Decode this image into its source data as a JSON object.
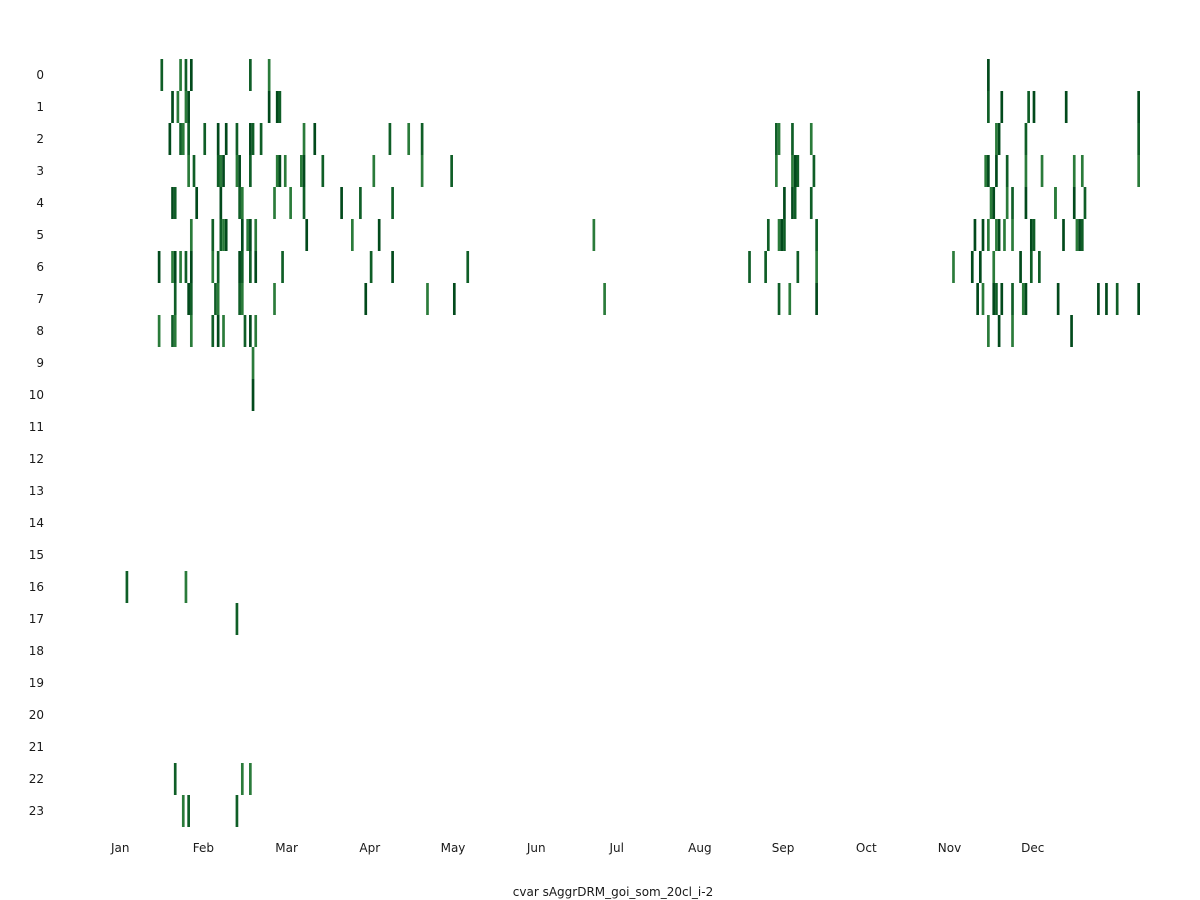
{
  "chart_data": {
    "type": "heatmap",
    "title": "",
    "xlabel": "cvar sAggrDRM_goi_som_20cl_i-2",
    "ylabel": "",
    "x_axis": {
      "type": "day-of-year",
      "range": [
        1,
        365
      ],
      "tick_labels": [
        "Jan",
        "Feb",
        "Mar",
        "Apr",
        "May",
        "Jun",
        "Jul",
        "Aug",
        "Sep",
        "Oct",
        "Nov",
        "Dec"
      ]
    },
    "y_axis": {
      "type": "hour-of-day",
      "range": [
        0,
        23
      ],
      "tick_labels": [
        "0",
        "1",
        "2",
        "3",
        "4",
        "5",
        "6",
        "7",
        "8",
        "9",
        "10",
        "11",
        "12",
        "13",
        "14",
        "15",
        "16",
        "17",
        "18",
        "19",
        "20",
        "21",
        "22",
        "23"
      ]
    },
    "grid": false,
    "legend": "none",
    "colors": {
      "dark": "#024a1c",
      "mid": "#0f5e27",
      "light": "#2a7b3a"
    },
    "cells": [
      {
        "hour": 0,
        "days": [
          28,
          35,
          37,
          39,
          61,
          68,
          336
        ]
      },
      {
        "hour": 1,
        "days": [
          32,
          34,
          37,
          38,
          68,
          71,
          72,
          336,
          341,
          351,
          353,
          365,
          392
        ]
      },
      {
        "hour": 2,
        "days": [
          31,
          35,
          36,
          38,
          44,
          49,
          52,
          56,
          61,
          62,
          65,
          81,
          85,
          113,
          120,
          125,
          257,
          258,
          263,
          270,
          339,
          340,
          350,
          392
        ]
      },
      {
        "hour": 3,
        "days": [
          38,
          40,
          49,
          50,
          51,
          56,
          57,
          61,
          71,
          72,
          74,
          80,
          81,
          88,
          107,
          125,
          136,
          257,
          263,
          264,
          265,
          271,
          335,
          336,
          339,
          343,
          350,
          356,
          368,
          371,
          392
        ]
      },
      {
        "hour": 4,
        "days": [
          32,
          33,
          41,
          50,
          57,
          58,
          70,
          76,
          81,
          95,
          102,
          114,
          260,
          263,
          264,
          270,
          337,
          338,
          343,
          345,
          350,
          361,
          361,
          368,
          372
        ]
      },
      {
        "hour": 5,
        "days": [
          39,
          47,
          50,
          51,
          52,
          58,
          60,
          61,
          63,
          82,
          99,
          109,
          189,
          254,
          258,
          259,
          260,
          272,
          331,
          334,
          336,
          339,
          340,
          342,
          345,
          352,
          353,
          364,
          369,
          370,
          371
        ]
      },
      {
        "hour": 6,
        "days": [
          27,
          32,
          33,
          35,
          37,
          39,
          47,
          49,
          57,
          58,
          61,
          63,
          73,
          106,
          114,
          142,
          247,
          253,
          265,
          272,
          323,
          330,
          333,
          338,
          348,
          352,
          355
        ]
      },
      {
        "hour": 7,
        "days": [
          33,
          38,
          39,
          48,
          49,
          57,
          58,
          70,
          104,
          127,
          137,
          193,
          258,
          262,
          272,
          332,
          334,
          338,
          339,
          341,
          345,
          349,
          350,
          362,
          377,
          380,
          384,
          392
        ]
      },
      {
        "hour": 8,
        "days": [
          27,
          32,
          33,
          39,
          47,
          49,
          51,
          59,
          61,
          63,
          336,
          340,
          345,
          367
        ]
      },
      {
        "hour": 9,
        "days": [
          62
        ]
      },
      {
        "hour": 10,
        "days": [
          62
        ]
      },
      {
        "hour": 16,
        "days": [
          15,
          37
        ]
      },
      {
        "hour": 17,
        "days": [
          56
        ]
      },
      {
        "hour": 22,
        "days": [
          33,
          58,
          61
        ]
      },
      {
        "hour": 23,
        "days": [
          36,
          38,
          56
        ]
      }
    ]
  }
}
